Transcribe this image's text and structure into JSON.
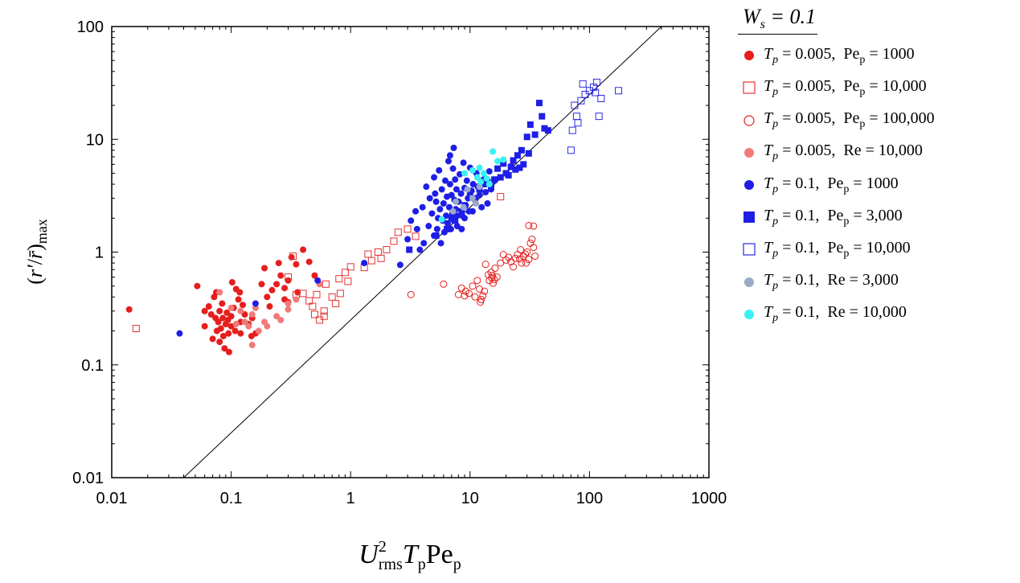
{
  "chart_data": {
    "type": "scatter",
    "title": "",
    "xlabel": "U_rms^2 T_p Pe_p",
    "ylabel": "(r'/r̄)_max",
    "xscale": "log",
    "yscale": "log",
    "xlim": [
      0.01,
      1000
    ],
    "ylim": [
      0.01,
      100
    ],
    "x_ticks": [
      "0.01",
      "0.1",
      "1",
      "10",
      "100",
      "1000"
    ],
    "y_ticks": [
      "0.01",
      "0.1",
      "1",
      "10",
      "100"
    ],
    "reference_line": {
      "x": [
        0.04,
        400
      ],
      "y": [
        0.01,
        100
      ],
      "label": ""
    },
    "legend": {
      "title": "W_s = 0.1",
      "placement": "right-outside"
    },
    "series": [
      {
        "name": "T_p = 0.005, Pe_p = 1000",
        "marker": "circle-filled",
        "color": "#e61e1e",
        "points": [
          [
            0.014,
            0.31
          ],
          [
            0.052,
            0.5
          ],
          [
            0.06,
            0.22
          ],
          [
            0.065,
            0.33
          ],
          [
            0.068,
            0.28
          ],
          [
            0.07,
            0.17
          ],
          [
            0.072,
            0.4
          ],
          [
            0.074,
            0.26
          ],
          [
            0.076,
            0.2
          ],
          [
            0.078,
            0.24
          ],
          [
            0.08,
            0.3
          ],
          [
            0.08,
            0.16
          ],
          [
            0.082,
            0.21
          ],
          [
            0.084,
            0.35
          ],
          [
            0.085,
            0.26
          ],
          [
            0.086,
            0.18
          ],
          [
            0.088,
            0.14
          ],
          [
            0.09,
            0.23
          ],
          [
            0.092,
            0.29
          ],
          [
            0.094,
            0.25
          ],
          [
            0.095,
            0.19
          ],
          [
            0.096,
            0.13
          ],
          [
            0.1,
            0.22
          ],
          [
            0.1,
            0.27
          ],
          [
            0.102,
            0.54
          ],
          [
            0.105,
            0.32
          ],
          [
            0.108,
            0.2
          ],
          [
            0.11,
            0.47
          ],
          [
            0.115,
            0.38
          ],
          [
            0.118,
            0.44
          ],
          [
            0.12,
            0.24
          ],
          [
            0.12,
            0.19
          ],
          [
            0.125,
            0.34
          ],
          [
            0.13,
            0.28
          ],
          [
            0.14,
            0.23
          ],
          [
            0.148,
            0.18
          ],
          [
            0.15,
            0.26
          ],
          [
            0.16,
            0.19
          ],
          [
            0.18,
            0.52
          ],
          [
            0.19,
            0.72
          ],
          [
            0.2,
            0.4
          ],
          [
            0.21,
            0.33
          ],
          [
            0.22,
            0.46
          ],
          [
            0.25,
            0.8
          ],
          [
            0.26,
            0.62
          ],
          [
            0.28,
            0.48
          ],
          [
            0.3,
            0.56
          ],
          [
            0.3,
            0.36
          ],
          [
            0.32,
            0.9
          ],
          [
            0.35,
            0.78
          ],
          [
            0.36,
            0.44
          ],
          [
            0.4,
            1.05
          ],
          [
            0.45,
            0.82
          ],
          [
            0.5,
            0.62
          ],
          [
            0.28,
            0.38
          ],
          [
            0.24,
            0.52
          ],
          [
            0.075,
            0.44
          ],
          [
            0.06,
            0.3
          ]
        ]
      },
      {
        "name": "T_p = 0.005, Pe_p = 10,000",
        "marker": "square-open",
        "color": "#e63232",
        "points": [
          [
            0.016,
            0.21
          ],
          [
            0.3,
            0.6
          ],
          [
            0.35,
            0.42
          ],
          [
            0.4,
            0.43
          ],
          [
            0.45,
            0.37
          ],
          [
            0.5,
            0.28
          ],
          [
            0.52,
            0.42
          ],
          [
            0.55,
            0.25
          ],
          [
            0.6,
            0.3
          ],
          [
            0.62,
            0.52
          ],
          [
            0.7,
            0.4
          ],
          [
            0.75,
            0.35
          ],
          [
            0.8,
            0.58
          ],
          [
            0.82,
            0.43
          ],
          [
            0.9,
            0.66
          ],
          [
            0.95,
            0.55
          ],
          [
            1.0,
            0.74
          ],
          [
            1.3,
            0.73
          ],
          [
            1.4,
            0.96
          ],
          [
            1.5,
            0.84
          ],
          [
            1.8,
            0.88
          ],
          [
            2.0,
            1.05
          ],
          [
            2.3,
            1.25
          ],
          [
            2.5,
            1.5
          ],
          [
            3.0,
            1.6
          ],
          [
            3.5,
            1.38
          ],
          [
            1.7,
            1.0
          ],
          [
            0.48,
            0.33
          ],
          [
            0.6,
            0.27
          ],
          [
            18,
            3.1
          ],
          [
            0.33,
            0.92
          ]
        ]
      },
      {
        "name": "T_p = 0.005, Pe_p = 100,000",
        "marker": "circle-open",
        "color": "#e61e1e",
        "points": [
          [
            3.2,
            0.42
          ],
          [
            6.0,
            0.52
          ],
          [
            8.0,
            0.42
          ],
          [
            8.5,
            0.48
          ],
          [
            9.0,
            0.41
          ],
          [
            9.2,
            0.45
          ],
          [
            9.8,
            0.43
          ],
          [
            10.5,
            0.5
          ],
          [
            11.0,
            0.4
          ],
          [
            11.5,
            0.56
          ],
          [
            12.0,
            0.47
          ],
          [
            12.4,
            0.38
          ],
          [
            12.8,
            0.41
          ],
          [
            13.2,
            0.45
          ],
          [
            13.5,
            0.78
          ],
          [
            14.2,
            0.63
          ],
          [
            14.5,
            0.56
          ],
          [
            15.0,
            0.66
          ],
          [
            15.2,
            0.59
          ],
          [
            15.4,
            0.62
          ],
          [
            15.6,
            0.53
          ],
          [
            16.0,
            0.57
          ],
          [
            16.2,
            0.72
          ],
          [
            16.8,
            0.6
          ],
          [
            18.0,
            0.8
          ],
          [
            19.0,
            0.95
          ],
          [
            20.0,
            0.85
          ],
          [
            21.0,
            0.9
          ],
          [
            22.0,
            0.82
          ],
          [
            23.0,
            0.74
          ],
          [
            24.0,
            0.88
          ],
          [
            25.0,
            0.95
          ],
          [
            26.0,
            0.87
          ],
          [
            27.0,
            0.8
          ],
          [
            28.0,
            0.92
          ],
          [
            29.0,
            0.96
          ],
          [
            30.0,
            1.0
          ],
          [
            31.0,
            0.86
          ],
          [
            32.0,
            1.2
          ],
          [
            33.0,
            1.3
          ],
          [
            34.0,
            1.1
          ],
          [
            35.0,
            0.92
          ],
          [
            34.0,
            1.7
          ],
          [
            31.0,
            1.72
          ],
          [
            29.5,
            0.8
          ],
          [
            26.5,
            1.05
          ],
          [
            12.2,
            0.36
          ]
        ]
      },
      {
        "name": "T_p = 0.005, Re = 10,000",
        "marker": "circle-filled",
        "color": "#f07a7a",
        "points": [
          [
            0.08,
            0.44
          ],
          [
            0.1,
            0.32
          ],
          [
            0.11,
            0.23
          ],
          [
            0.12,
            0.3
          ],
          [
            0.13,
            0.24
          ],
          [
            0.14,
            0.22
          ],
          [
            0.15,
            0.28
          ],
          [
            0.15,
            0.15
          ],
          [
            0.17,
            0.2
          ],
          [
            0.19,
            0.24
          ],
          [
            0.2,
            0.22
          ],
          [
            0.24,
            0.27
          ],
          [
            0.26,
            0.25
          ],
          [
            0.3,
            0.35
          ],
          [
            0.3,
            0.31
          ],
          [
            0.35,
            0.38
          ],
          [
            0.55,
            0.52
          ],
          [
            0.16,
            0.32
          ]
        ]
      },
      {
        "name": "T_p = 0.1, Pe_p = 1000",
        "marker": "circle-filled",
        "color": "#1e1ee6",
        "points": [
          [
            0.037,
            0.19
          ],
          [
            0.16,
            0.35
          ],
          [
            0.53,
            0.56
          ],
          [
            1.3,
            0.8
          ],
          [
            2.6,
            0.77
          ],
          [
            3.0,
            1.3
          ],
          [
            3.2,
            1.9
          ],
          [
            3.5,
            2.3
          ],
          [
            3.6,
            1.6
          ],
          [
            3.8,
            1.05
          ],
          [
            4.0,
            2.5
          ],
          [
            4.1,
            1.2
          ],
          [
            4.3,
            3.8
          ],
          [
            4.5,
            1.7
          ],
          [
            4.6,
            3.0
          ],
          [
            4.8,
            2.2
          ],
          [
            5.0,
            1.4
          ],
          [
            5.0,
            4.6
          ],
          [
            5.1,
            3.3
          ],
          [
            5.2,
            2.8
          ],
          [
            5.3,
            1.6
          ],
          [
            5.4,
            2.0
          ],
          [
            5.5,
            5.3
          ],
          [
            5.6,
            2.4
          ],
          [
            5.7,
            1.2
          ],
          [
            5.8,
            3.6
          ],
          [
            5.9,
            1.9
          ],
          [
            6.0,
            2.7
          ],
          [
            6.1,
            1.5
          ],
          [
            6.2,
            4.3
          ],
          [
            6.3,
            2.1
          ],
          [
            6.4,
            3.1
          ],
          [
            6.5,
            1.8
          ],
          [
            6.6,
            6.4
          ],
          [
            6.7,
            2.5
          ],
          [
            6.8,
            4.0
          ],
          [
            6.9,
            1.6
          ],
          [
            7.0,
            3.2
          ],
          [
            7.1,
            2.2
          ],
          [
            7.2,
            5.5
          ],
          [
            7.3,
            1.9
          ],
          [
            7.4,
            2.9
          ],
          [
            7.5,
            4.4
          ],
          [
            7.6,
            2.4
          ],
          [
            7.7,
            3.6
          ],
          [
            7.8,
            1.7
          ],
          [
            8.0,
            2.8
          ],
          [
            8.2,
            4.9
          ],
          [
            8.4,
            3.3
          ],
          [
            8.6,
            2.1
          ],
          [
            8.8,
            6.2
          ],
          [
            9.0,
            3.7
          ],
          [
            9.2,
            2.6
          ],
          [
            9.4,
            4.3
          ],
          [
            9.6,
            3.0
          ],
          [
            9.8,
            2.3
          ],
          [
            10.0,
            5.6
          ],
          [
            10.3,
            3.5
          ],
          [
            10.6,
            4.0
          ],
          [
            11.0,
            2.9
          ],
          [
            11.3,
            5.0
          ],
          [
            11.6,
            3.8
          ],
          [
            12.0,
            3.2
          ],
          [
            12.5,
            2.5
          ],
          [
            13.0,
            4.4
          ],
          [
            13.5,
            3.4
          ],
          [
            14.0,
            2.7
          ],
          [
            14.5,
            5.2
          ],
          [
            15.0,
            3.6
          ],
          [
            16.0,
            4.3
          ],
          [
            7.3,
            8.4
          ],
          [
            6.8,
            7.2
          ],
          [
            9.0,
            2.0
          ],
          [
            10.5,
            2.3
          ],
          [
            8.5,
            1.6
          ],
          [
            7.7,
            2.1
          ]
        ]
      },
      {
        "name": "T_p = 0.1, Pe_p = 3,000",
        "marker": "square-filled",
        "color": "#1e1ee6",
        "points": [
          [
            3.1,
            1.05
          ],
          [
            5.2,
            1.4
          ],
          [
            6.4,
            1.6
          ],
          [
            7.0,
            2.0
          ],
          [
            7.5,
            1.9
          ],
          [
            8.5,
            2.3
          ],
          [
            9.0,
            2.6
          ],
          [
            10.0,
            3.4
          ],
          [
            11.0,
            3.0
          ],
          [
            12.0,
            3.6
          ],
          [
            13.0,
            4.0
          ],
          [
            14.0,
            4.2
          ],
          [
            15.0,
            3.8
          ],
          [
            16.0,
            4.4
          ],
          [
            17.0,
            5.5
          ],
          [
            18.0,
            4.6
          ],
          [
            19.0,
            6.1
          ],
          [
            20.0,
            5.0
          ],
          [
            21.0,
            4.8
          ],
          [
            23.0,
            6.5
          ],
          [
            24.0,
            5.4
          ],
          [
            25.0,
            7.2
          ],
          [
            27.0,
            8.0
          ],
          [
            28.0,
            6.0
          ],
          [
            30.0,
            10.5
          ],
          [
            31.0,
            7.5
          ],
          [
            32.0,
            13.5
          ],
          [
            35.0,
            11.0
          ],
          [
            38.0,
            21.0
          ],
          [
            40.0,
            16.0
          ],
          [
            42.0,
            12.5
          ],
          [
            45.0,
            12.0
          ],
          [
            22.0,
            5.7
          ],
          [
            26.0,
            5.6
          ]
        ]
      },
      {
        "name": "T_p = 0.1, Pe_p = 10,000",
        "marker": "square-open",
        "color": "#2a2ae6",
        "points": [
          [
            70,
            8.0
          ],
          [
            75,
            20.0
          ],
          [
            78,
            16.0
          ],
          [
            80,
            14.0
          ],
          [
            85,
            22.0
          ],
          [
            88,
            31.0
          ],
          [
            92,
            25.0
          ],
          [
            100,
            27.0
          ],
          [
            108,
            29.0
          ],
          [
            112,
            26.0
          ],
          [
            115,
            32.0
          ],
          [
            120,
            16.0
          ],
          [
            125,
            23.0
          ],
          [
            175,
            27.0
          ],
          [
            72,
            12.0
          ]
        ]
      },
      {
        "name": "T_p = 0.1, Re = 3,000",
        "marker": "circle-filled",
        "color": "#9aaac8",
        "points": [
          [
            7.6,
            2.8
          ],
          [
            8.8,
            2.5
          ],
          [
            9.5,
            3.6
          ],
          [
            10.5,
            3.0
          ],
          [
            11.2,
            2.7
          ],
          [
            12.0,
            3.8
          ],
          [
            7.2,
            2.3
          ]
        ]
      },
      {
        "name": "T_p = 0.1, Re = 10,000",
        "marker": "circle-filled",
        "color": "#3af2f2",
        "points": [
          [
            5.8,
            1.95
          ],
          [
            9.0,
            5.0
          ],
          [
            10.5,
            5.3
          ],
          [
            11.5,
            4.6
          ],
          [
            12.3,
            4.2
          ],
          [
            13.0,
            5.0
          ],
          [
            13.8,
            4.5
          ],
          [
            14.5,
            4.0
          ],
          [
            15.5,
            7.8
          ],
          [
            17.0,
            6.4
          ],
          [
            19.0,
            6.6
          ],
          [
            12.0,
            5.6
          ]
        ]
      }
    ]
  }
}
